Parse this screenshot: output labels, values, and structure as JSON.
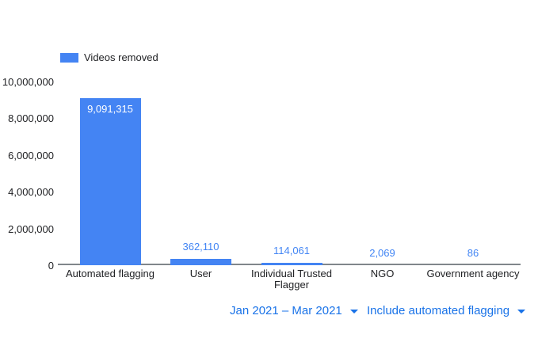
{
  "legend": {
    "label": "Videos removed"
  },
  "controls": {
    "date_range": {
      "label": "Jan 2021 – Mar 2021"
    },
    "flagging_filter": {
      "label": "Include automated flagging"
    }
  },
  "chart_data": {
    "type": "bar",
    "title": "",
    "categories": [
      "Automated flagging",
      "User",
      "Individual Trusted Flagger",
      "NGO",
      "Government agency"
    ],
    "series": [
      {
        "name": "Videos removed",
        "values": [
          9091315,
          362110,
          114061,
          2069,
          86
        ]
      }
    ],
    "value_labels": [
      "9,091,315",
      "362,110",
      "114,061",
      "2,069",
      "86"
    ],
    "xlabel": "",
    "ylabel": "",
    "ylim": [
      0,
      10000000
    ],
    "y_ticks": [
      "10,000,000",
      "8,000,000",
      "6,000,000",
      "4,000,000",
      "2,000,000",
      "0"
    ],
    "y_tick_values": [
      10000000,
      8000000,
      6000000,
      4000000,
      2000000,
      0
    ],
    "grid": false,
    "legend_position": "top-left",
    "colors": {
      "bar": "#4484f3",
      "value_label": "#4285f4",
      "in_bar_label": "#ffffff",
      "axis_line": "#80868b",
      "control_text": "#1a73e8",
      "text": "#202124"
    }
  }
}
